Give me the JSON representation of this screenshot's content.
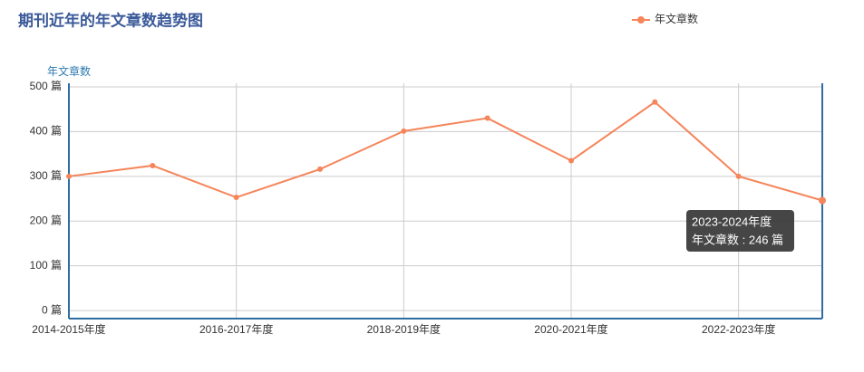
{
  "chart_data": {
    "type": "line",
    "title": "期刊近年的年文章数趋势图",
    "y_axis_label": "年文章数",
    "categories": [
      "2014-2015年度",
      null,
      "2016-2017年度",
      null,
      "2018-2019年度",
      null,
      "2020-2021年度",
      null,
      "2022-2023年度",
      null
    ],
    "series": [
      {
        "name": "年文章数",
        "color": "#f5855a",
        "values": [
          300,
          324,
          253,
          316,
          401,
          430,
          335,
          466,
          300,
          246
        ]
      }
    ],
    "ylim": [
      -18,
      508
    ],
    "yticks": [
      {
        "value": 0,
        "label": "0 篇"
      },
      {
        "value": 100,
        "label": "100 篇"
      },
      {
        "value": 200,
        "label": "200 篇"
      },
      {
        "value": 300,
        "label": "300 篇"
      },
      {
        "value": 400,
        "label": "400 篇"
      },
      {
        "value": 500,
        "label": "500 篇"
      }
    ],
    "grid": true,
    "legend": "top-right",
    "tooltip": {
      "title": "2023-2024年度",
      "text": "年文章数 : 246 篇"
    }
  }
}
